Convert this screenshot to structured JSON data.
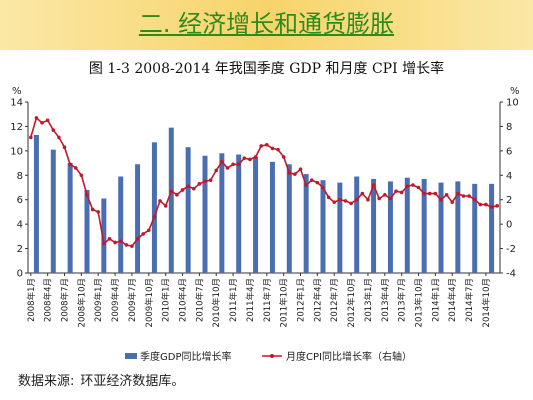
{
  "slide": {
    "heading": "二. 经济增长和通货膨胀",
    "source_label": "数据来源:",
    "source_text": "环亚经济数据库。"
  },
  "colors": {
    "banner": "#f7d46a",
    "heading": "#2f8a1c",
    "bar": "#4a6fb0",
    "line": "#c0192b"
  },
  "chart_data": {
    "type": "bar",
    "title": "图 1-3    2008-2014 年我国季度 GDP 和月度 CPI 增长率",
    "left_axis": {
      "unit": "%",
      "ylim": [
        0,
        14
      ],
      "ticks": [
        0,
        2,
        4,
        6,
        8,
        10,
        12,
        14
      ]
    },
    "right_axis": {
      "unit": "%",
      "ylim": [
        -4,
        10
      ],
      "ticks": [
        -4,
        -2,
        0,
        2,
        4,
        6,
        8,
        10
      ]
    },
    "x_tick_labels": [
      "2008年1月",
      "2008年4月",
      "2008年7月",
      "2008年10月",
      "2009年1月",
      "2009年4月",
      "2009年7月",
      "2009年10月",
      "2010年1月",
      "2010年4月",
      "2010年7月",
      "2010年10月",
      "2011年1月",
      "2011年4月",
      "2011年7月",
      "2011年10月",
      "2012年1月",
      "2012年4月",
      "2012年7月",
      "2012年10月",
      "2013年1月",
      "2013年4月",
      "2013年7月",
      "2013年10月",
      "2014年1月",
      "2014年4月",
      "2014年7月",
      "2014年10月"
    ],
    "series": [
      {
        "name": "季度GDP同比增长率",
        "axis": "left",
        "kind": "bar",
        "values": [
          11.3,
          10.1,
          9.0,
          6.8,
          6.1,
          7.9,
          8.9,
          10.7,
          11.9,
          10.3,
          9.6,
          9.8,
          9.7,
          9.5,
          9.1,
          8.9,
          8.1,
          7.6,
          7.4,
          7.9,
          7.7,
          7.5,
          7.8,
          7.7,
          7.4,
          7.5,
          7.3,
          7.3
        ]
      },
      {
        "name": "月度CPI同比增长率（右轴）",
        "axis": "right",
        "kind": "line",
        "values": [
          7.1,
          8.7,
          8.3,
          8.5,
          7.7,
          7.1,
          6.3,
          4.9,
          4.6,
          4.0,
          2.4,
          1.2,
          1.0,
          -1.6,
          -1.2,
          -1.5,
          -1.4,
          -1.7,
          -1.8,
          -1.2,
          -0.8,
          -0.5,
          0.6,
          1.9,
          1.5,
          2.7,
          2.4,
          2.8,
          3.1,
          2.9,
          3.3,
          3.5,
          3.6,
          4.4,
          5.1,
          4.6,
          4.9,
          4.9,
          5.4,
          5.3,
          5.5,
          6.4,
          6.5,
          6.2,
          6.1,
          5.5,
          4.2,
          4.1,
          4.5,
          3.2,
          3.6,
          3.4,
          3.0,
          2.2,
          1.8,
          2.0,
          1.9,
          1.7,
          2.0,
          2.5,
          2.0,
          3.2,
          2.1,
          2.4,
          2.1,
          2.7,
          2.6,
          3.1,
          3.2,
          3.0,
          2.5,
          2.5,
          2.5,
          2.0,
          2.4,
          1.8,
          2.5,
          2.3,
          2.3,
          2.0,
          1.6,
          1.6,
          1.4,
          1.5
        ]
      }
    ],
    "legend_position": "bottom",
    "grid": false
  }
}
